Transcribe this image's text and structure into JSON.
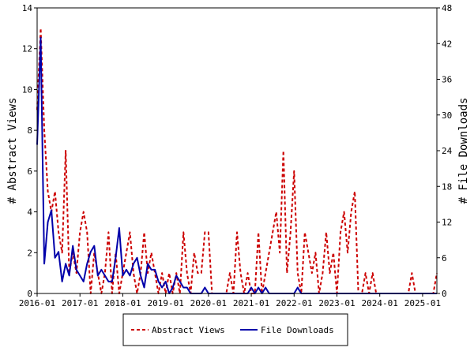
{
  "chart_data": {
    "type": "line",
    "ylabel_left": "# Abstract Views",
    "ylabel_right": "# File Downloads",
    "x_tick_labels": [
      "2016-01",
      "2017-01",
      "2018-01",
      "2019-01",
      "2020-01",
      "2021-01",
      "2022-01",
      "2023-01",
      "2024-01",
      "2025-01"
    ],
    "y_left_ticks": [
      0,
      2,
      4,
      6,
      8,
      10,
      12,
      14
    ],
    "y_right_ticks": [
      0,
      6,
      12,
      18,
      24,
      30,
      36,
      42,
      48
    ],
    "ylim_left": [
      0,
      14
    ],
    "ylim_right": [
      0,
      48
    ],
    "xlim": [
      "2016-01",
      "2025-05"
    ],
    "legend_position": "bottom",
    "series": [
      {
        "name": "Abstract Views",
        "axis": "left",
        "color": "#cc0000",
        "dash": "dashed",
        "points": [
          [
            "2016-01",
            9
          ],
          [
            "2016-02",
            13
          ],
          [
            "2016-03",
            8
          ],
          [
            "2016-04",
            5
          ],
          [
            "2016-05",
            4
          ],
          [
            "2016-06",
            5
          ],
          [
            "2016-07",
            3
          ],
          [
            "2016-08",
            2
          ],
          [
            "2016-09",
            7
          ],
          [
            "2016-10",
            1
          ],
          [
            "2016-11",
            2
          ],
          [
            "2016-12",
            1
          ],
          [
            "2017-01",
            3
          ],
          [
            "2017-02",
            4
          ],
          [
            "2017-03",
            3
          ],
          [
            "2017-04",
            0
          ],
          [
            "2017-05",
            2
          ],
          [
            "2017-06",
            1
          ],
          [
            "2017-07",
            0
          ],
          [
            "2017-08",
            1
          ],
          [
            "2017-09",
            3
          ],
          [
            "2017-10",
            0
          ],
          [
            "2017-11",
            2
          ],
          [
            "2017-12",
            0
          ],
          [
            "2018-01",
            1
          ],
          [
            "2018-02",
            2
          ],
          [
            "2018-03",
            3
          ],
          [
            "2018-04",
            1
          ],
          [
            "2018-05",
            0
          ],
          [
            "2018-06",
            1
          ],
          [
            "2018-07",
            3
          ],
          [
            "2018-08",
            1
          ],
          [
            "2018-09",
            2
          ],
          [
            "2018-10",
            1
          ],
          [
            "2018-11",
            0
          ],
          [
            "2018-12",
            1
          ],
          [
            "2019-01",
            0
          ],
          [
            "2019-02",
            1
          ],
          [
            "2019-03",
            0
          ],
          [
            "2019-04",
            1
          ],
          [
            "2019-05",
            0
          ],
          [
            "2019-06",
            3
          ],
          [
            "2019-07",
            1
          ],
          [
            "2019-08",
            0
          ],
          [
            "2019-09",
            2
          ],
          [
            "2019-10",
            1
          ],
          [
            "2019-11",
            1
          ],
          [
            "2019-12",
            3
          ],
          [
            "2020-01",
            3
          ],
          [
            "2020-02",
            0
          ],
          [
            "2020-03",
            0
          ],
          [
            "2020-04",
            0
          ],
          [
            "2020-05",
            0
          ],
          [
            "2020-06",
            0
          ],
          [
            "2020-07",
            1
          ],
          [
            "2020-08",
            0
          ],
          [
            "2020-09",
            3
          ],
          [
            "2020-10",
            1
          ],
          [
            "2020-11",
            0
          ],
          [
            "2020-12",
            1
          ],
          [
            "2021-01",
            0
          ],
          [
            "2021-02",
            0
          ],
          [
            "2021-03",
            3
          ],
          [
            "2021-04",
            0
          ],
          [
            "2021-05",
            1
          ],
          [
            "2021-06",
            2
          ],
          [
            "2021-07",
            3
          ],
          [
            "2021-08",
            4
          ],
          [
            "2021-09",
            2
          ],
          [
            "2021-10",
            7
          ],
          [
            "2021-11",
            1
          ],
          [
            "2021-12",
            3
          ],
          [
            "2022-01",
            6
          ],
          [
            "2022-02",
            1
          ],
          [
            "2022-03",
            0
          ],
          [
            "2022-04",
            3
          ],
          [
            "2022-05",
            2
          ],
          [
            "2022-06",
            1
          ],
          [
            "2022-07",
            2
          ],
          [
            "2022-08",
            0
          ],
          [
            "2022-09",
            1
          ],
          [
            "2022-10",
            3
          ],
          [
            "2022-11",
            1
          ],
          [
            "2022-12",
            2
          ],
          [
            "2023-01",
            0
          ],
          [
            "2023-02",
            3
          ],
          [
            "2023-03",
            4
          ],
          [
            "2023-04",
            2
          ],
          [
            "2023-05",
            4
          ],
          [
            "2023-06",
            5
          ],
          [
            "2023-07",
            0
          ],
          [
            "2023-08",
            0
          ],
          [
            "2023-09",
            1
          ],
          [
            "2023-10",
            0
          ],
          [
            "2023-11",
            1
          ],
          [
            "2023-12",
            0
          ],
          [
            "2024-01",
            0
          ],
          [
            "2024-02",
            0
          ],
          [
            "2024-03",
            0
          ],
          [
            "2024-04",
            0
          ],
          [
            "2024-05",
            0
          ],
          [
            "2024-06",
            0
          ],
          [
            "2024-07",
            0
          ],
          [
            "2024-08",
            0
          ],
          [
            "2024-09",
            0
          ],
          [
            "2024-10",
            1
          ],
          [
            "2024-11",
            0
          ],
          [
            "2024-12",
            0
          ],
          [
            "2025-01",
            0
          ],
          [
            "2025-02",
            0
          ],
          [
            "2025-03",
            0
          ],
          [
            "2025-04",
            0
          ],
          [
            "2025-05",
            1
          ]
        ]
      },
      {
        "name": "File Downloads",
        "axis": "right",
        "color": "#0000aa",
        "dash": "solid",
        "points": [
          [
            "2016-01",
            25
          ],
          [
            "2016-02",
            43
          ],
          [
            "2016-03",
            5
          ],
          [
            "2016-04",
            12
          ],
          [
            "2016-05",
            14
          ],
          [
            "2016-06",
            6
          ],
          [
            "2016-07",
            7
          ],
          [
            "2016-08",
            2
          ],
          [
            "2016-09",
            5
          ],
          [
            "2016-10",
            3
          ],
          [
            "2016-11",
            8
          ],
          [
            "2016-12",
            4
          ],
          [
            "2017-01",
            3
          ],
          [
            "2017-02",
            2
          ],
          [
            "2017-03",
            5
          ],
          [
            "2017-04",
            7
          ],
          [
            "2017-05",
            8
          ],
          [
            "2017-06",
            3
          ],
          [
            "2017-07",
            4
          ],
          [
            "2017-08",
            3
          ],
          [
            "2017-09",
            2
          ],
          [
            "2017-10",
            2
          ],
          [
            "2017-11",
            6
          ],
          [
            "2017-12",
            11
          ],
          [
            "2018-01",
            3
          ],
          [
            "2018-02",
            4
          ],
          [
            "2018-03",
            3
          ],
          [
            "2018-04",
            5
          ],
          [
            "2018-05",
            6
          ],
          [
            "2018-06",
            3
          ],
          [
            "2018-07",
            1
          ],
          [
            "2018-08",
            5
          ],
          [
            "2018-09",
            4
          ],
          [
            "2018-10",
            4
          ],
          [
            "2018-11",
            2
          ],
          [
            "2018-12",
            1
          ],
          [
            "2019-01",
            2
          ],
          [
            "2019-02",
            0
          ],
          [
            "2019-03",
            1
          ],
          [
            "2019-04",
            3
          ],
          [
            "2019-05",
            2
          ],
          [
            "2019-06",
            1
          ],
          [
            "2019-07",
            1
          ],
          [
            "2019-08",
            0
          ],
          [
            "2019-09",
            0
          ],
          [
            "2019-10",
            0
          ],
          [
            "2019-11",
            0
          ],
          [
            "2019-12",
            1
          ],
          [
            "2020-01",
            0
          ],
          [
            "2020-02",
            0
          ],
          [
            "2020-03",
            0
          ],
          [
            "2020-04",
            0
          ],
          [
            "2020-05",
            0
          ],
          [
            "2020-06",
            0
          ],
          [
            "2020-07",
            0
          ],
          [
            "2020-08",
            0
          ],
          [
            "2020-09",
            0
          ],
          [
            "2020-10",
            0
          ],
          [
            "2020-11",
            0
          ],
          [
            "2020-12",
            0
          ],
          [
            "2021-01",
            1
          ],
          [
            "2021-02",
            0
          ],
          [
            "2021-03",
            1
          ],
          [
            "2021-04",
            0
          ],
          [
            "2021-05",
            1
          ],
          [
            "2021-06",
            0
          ],
          [
            "2021-07",
            0
          ],
          [
            "2021-08",
            0
          ],
          [
            "2021-09",
            0
          ],
          [
            "2021-10",
            0
          ],
          [
            "2021-11",
            0
          ],
          [
            "2021-12",
            0
          ],
          [
            "2022-01",
            0
          ],
          [
            "2022-02",
            1
          ],
          [
            "2022-03",
            0
          ],
          [
            "2022-04",
            0
          ],
          [
            "2022-05",
            0
          ],
          [
            "2022-06",
            0
          ],
          [
            "2022-07",
            0
          ],
          [
            "2022-08",
            0
          ],
          [
            "2022-09",
            0
          ],
          [
            "2022-10",
            0
          ],
          [
            "2022-11",
            0
          ],
          [
            "2022-12",
            0
          ],
          [
            "2023-01",
            0
          ],
          [
            "2023-02",
            0
          ],
          [
            "2023-03",
            0
          ],
          [
            "2023-04",
            0
          ],
          [
            "2023-05",
            0
          ],
          [
            "2023-06",
            0
          ],
          [
            "2023-07",
            0
          ],
          [
            "2023-08",
            0
          ],
          [
            "2023-09",
            0
          ],
          [
            "2023-10",
            0
          ],
          [
            "2023-11",
            0
          ],
          [
            "2023-12",
            0
          ],
          [
            "2024-01",
            0
          ],
          [
            "2024-02",
            0
          ],
          [
            "2024-03",
            0
          ],
          [
            "2024-04",
            0
          ],
          [
            "2024-05",
            0
          ],
          [
            "2024-06",
            0
          ],
          [
            "2024-07",
            0
          ],
          [
            "2024-08",
            0
          ],
          [
            "2024-09",
            0
          ],
          [
            "2024-10",
            0
          ],
          [
            "2024-11",
            0
          ],
          [
            "2024-12",
            0
          ],
          [
            "2025-01",
            0
          ],
          [
            "2025-02",
            0
          ],
          [
            "2025-03",
            0
          ],
          [
            "2025-04",
            0
          ],
          [
            "2025-05",
            0
          ]
        ]
      }
    ]
  }
}
